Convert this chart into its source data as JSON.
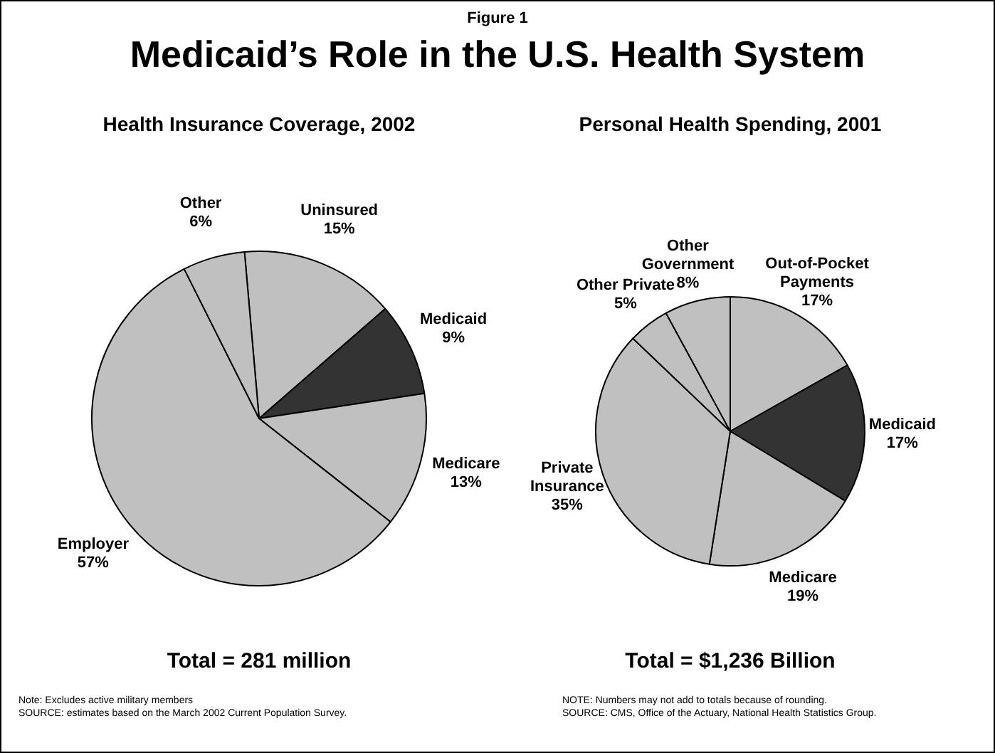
{
  "chart_data": [
    {
      "type": "pie",
      "title": "Health Insurance Coverage, 2002",
      "categories": [
        "Uninsured",
        "Medicaid",
        "Medicare",
        "Employer",
        "Other"
      ],
      "values": [
        15,
        9,
        13,
        57,
        6
      ],
      "colors": [
        "#c0c0c0",
        "#333333",
        "#c0c0c0",
        "#c0c0c0",
        "#c0c0c0"
      ],
      "value_labels": [
        "15%",
        "9%",
        "13%",
        "57%",
        "6%"
      ],
      "legend": false,
      "annotations": [
        "Figure 1",
        "Medicaid’s Role in the U.S. Health System",
        "Total = 281 million",
        "Note: Excludes active military members",
        "SOURCE: estimates based on the March 2002 Current Population Survey."
      ]
    },
    {
      "type": "pie",
      "title": "Personal Health Spending, 2001",
      "categories": [
        "Out-of-Pocket Payments",
        "Medicaid",
        "Medicare",
        "Private Insurance",
        "Other Private",
        "Other Government"
      ],
      "values": [
        17,
        17,
        19,
        35,
        5,
        8
      ],
      "colors": [
        "#c0c0c0",
        "#333333",
        "#c0c0c0",
        "#c0c0c0",
        "#c0c0c0",
        "#c0c0c0"
      ],
      "value_labels": [
        "17%",
        "17%",
        "19%",
        "35%",
        "5%",
        "8%"
      ],
      "legend": false,
      "annotations": [
        "Total = $1,236 Billion",
        "NOTE: Numbers may not add to totals because of rounding.",
        "SOURCE: CMS, Office of the Actuary, National Health Statistics Group."
      ]
    }
  ]
}
